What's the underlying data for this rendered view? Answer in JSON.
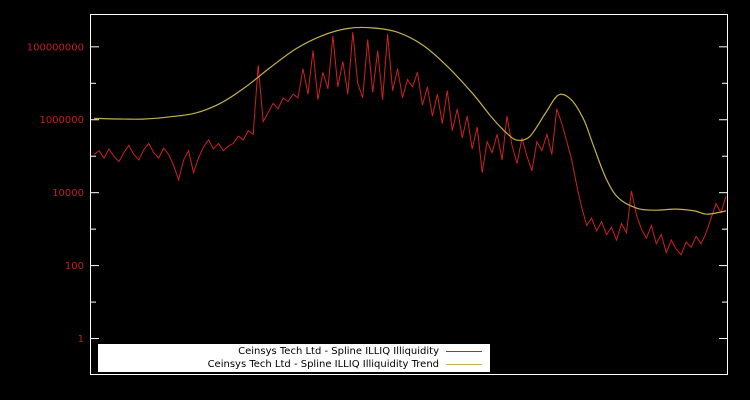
{
  "chart_data": {
    "type": "line",
    "title": "",
    "xlabel": "",
    "ylabel": "",
    "yscale": "log",
    "yticks": [
      1,
      100,
      10000,
      1000000,
      100000000
    ],
    "ylim_log": [
      -1.0,
      8.9
    ],
    "xlim": [
      0,
      1
    ],
    "grid": false,
    "legend_position": "bottom-center",
    "background": "#000000",
    "border_color": "#ffffff",
    "tick_label_color": "#c41e1e",
    "series": [
      {
        "name": "Ceinsys Tech Ltd - Spline ILLIQ Illiquidity",
        "color": "#cc2222",
        "style": "jagged",
        "log10_values": [
          5.05,
          5.15,
          4.95,
          5.2,
          5.0,
          4.85,
          5.1,
          5.3,
          5.05,
          4.9,
          5.18,
          5.35,
          5.1,
          4.95,
          5.22,
          5.05,
          4.75,
          4.35,
          4.9,
          5.15,
          4.55,
          4.95,
          5.25,
          5.45,
          5.2,
          5.35,
          5.15,
          5.28,
          5.35,
          5.55,
          5.45,
          5.7,
          5.6,
          7.5,
          5.95,
          6.2,
          6.45,
          6.3,
          6.6,
          6.5,
          6.7,
          6.6,
          7.4,
          6.7,
          7.9,
          6.55,
          7.3,
          6.85,
          8.3,
          6.9,
          7.6,
          6.7,
          8.4,
          7.0,
          6.6,
          8.2,
          6.75,
          7.9,
          6.55,
          8.35,
          6.8,
          7.4,
          6.6,
          7.1,
          6.9,
          7.3,
          6.4,
          6.9,
          6.1,
          6.7,
          5.9,
          6.8,
          5.7,
          6.3,
          5.5,
          6.1,
          5.2,
          5.8,
          4.55,
          5.4,
          5.1,
          5.6,
          4.9,
          6.1,
          5.3,
          4.8,
          5.5,
          5.0,
          4.6,
          5.4,
          5.15,
          5.6,
          5.05,
          6.3,
          5.9,
          5.4,
          4.9,
          4.2,
          3.6,
          3.1,
          3.3,
          2.95,
          3.2,
          2.85,
          3.05,
          2.7,
          3.15,
          2.9,
          4.05,
          3.4,
          3.0,
          2.75,
          3.1,
          2.6,
          2.85,
          2.35,
          2.7,
          2.45,
          2.3,
          2.65,
          2.5,
          2.8,
          2.6,
          2.9,
          3.3,
          3.7,
          3.45,
          3.9
        ]
      },
      {
        "name": "Ceinsys Tech Ltd - Spline ILLIQ Illiquidity Trend",
        "color": "#c2b14b",
        "style": "smooth",
        "points": [
          [
            0.0,
            6.04
          ],
          [
            0.04,
            6.02
          ],
          [
            0.08,
            6.02
          ],
          [
            0.12,
            6.08
          ],
          [
            0.16,
            6.18
          ],
          [
            0.2,
            6.45
          ],
          [
            0.24,
            6.9
          ],
          [
            0.28,
            7.45
          ],
          [
            0.32,
            7.95
          ],
          [
            0.36,
            8.3
          ],
          [
            0.4,
            8.5
          ],
          [
            0.44,
            8.52
          ],
          [
            0.48,
            8.4
          ],
          [
            0.52,
            8.05
          ],
          [
            0.56,
            7.45
          ],
          [
            0.6,
            6.7
          ],
          [
            0.63,
            6.05
          ],
          [
            0.655,
            5.6
          ],
          [
            0.67,
            5.44
          ],
          [
            0.69,
            5.55
          ],
          [
            0.715,
            6.2
          ],
          [
            0.735,
            6.68
          ],
          [
            0.755,
            6.55
          ],
          [
            0.775,
            6.0
          ],
          [
            0.79,
            5.3
          ],
          [
            0.81,
            4.4
          ],
          [
            0.83,
            3.85
          ],
          [
            0.86,
            3.57
          ],
          [
            0.89,
            3.52
          ],
          [
            0.92,
            3.55
          ],
          [
            0.95,
            3.5
          ],
          [
            0.97,
            3.41
          ],
          [
            1.0,
            3.5
          ]
        ]
      }
    ]
  },
  "legend": {
    "items": [
      {
        "label": "Ceinsys Tech Ltd - Spline ILLIQ Illiquidity"
      },
      {
        "label": "Ceinsys Tech Ltd - Spline ILLIQ Illiquidity Trend"
      }
    ]
  }
}
